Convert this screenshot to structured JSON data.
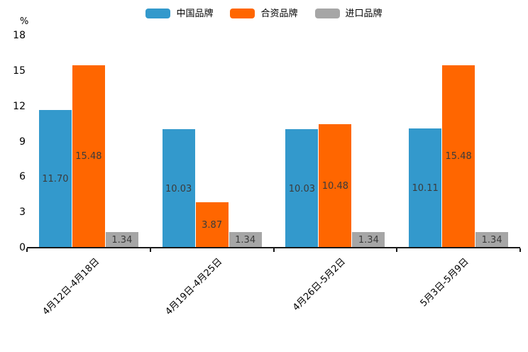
{
  "chart_data": {
    "type": "bar",
    "title": "",
    "xlabel": "",
    "ylabel": "%",
    "ylim": [
      0,
      18
    ],
    "yticks": [
      0,
      3,
      6,
      9,
      12,
      15,
      18
    ],
    "grid": false,
    "legend_position": "top-center",
    "categories": [
      "4月12日-4月18日",
      "4月19日-4月25日",
      "4月26日-5月2日",
      "5月3日-5月9日"
    ],
    "series": [
      {
        "name": "中国品牌",
        "color": "#3399CC",
        "values": [
          11.7,
          10.03,
          10.03,
          10.11
        ]
      },
      {
        "name": "合资品牌",
        "color": "#FF6600",
        "values": [
          15.48,
          3.87,
          10.48,
          15.48
        ]
      },
      {
        "name": "进口品牌",
        "color": "#A6A6A6",
        "values": [
          1.34,
          1.34,
          1.34,
          1.34
        ]
      }
    ],
    "value_label_decimals": 2,
    "value_label_color": "#3b3b3b",
    "axis_color": "#1a1a1a",
    "background_color": "#ffffff"
  }
}
